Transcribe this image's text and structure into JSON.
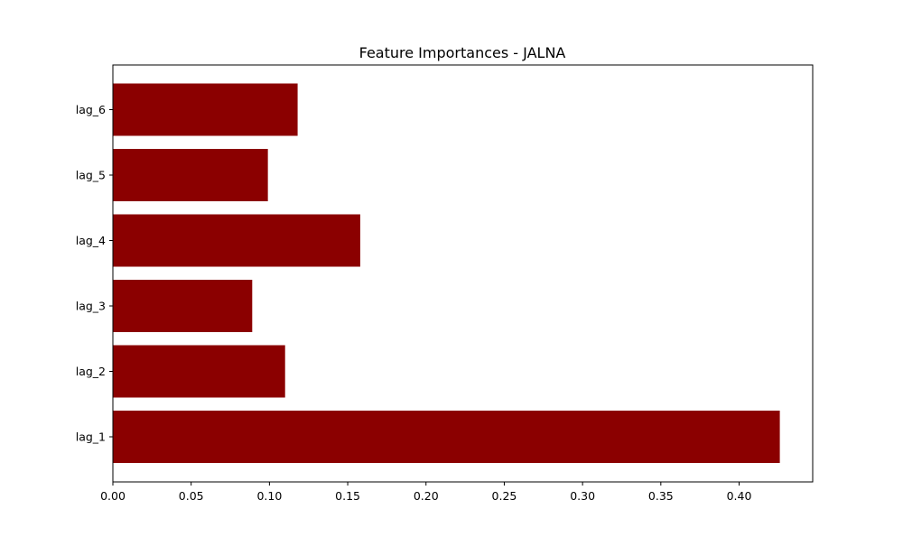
{
  "chart_data": {
    "type": "bar",
    "orientation": "horizontal",
    "title": "Feature Importances - JALNA",
    "xlabel": "",
    "ylabel": "",
    "categories": [
      "lag_1",
      "lag_2",
      "lag_3",
      "lag_4",
      "lag_5",
      "lag_6"
    ],
    "values": [
      0.426,
      0.11,
      0.089,
      0.158,
      0.099,
      0.118
    ],
    "xlim": [
      0.0,
      0.447
    ],
    "xticks": [
      "0.00",
      "0.05",
      "0.10",
      "0.15",
      "0.20",
      "0.25",
      "0.30",
      "0.35",
      "0.40"
    ],
    "bar_color": "#8b0000",
    "grid": false,
    "legend": "none"
  }
}
